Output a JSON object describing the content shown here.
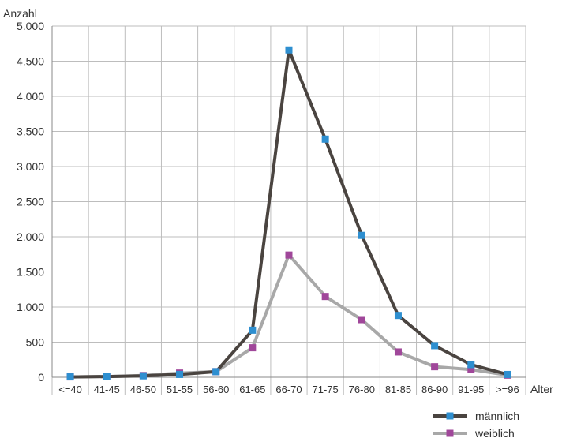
{
  "chart_data": {
    "type": "line",
    "ylabel": "Anzahl",
    "xlabel": "Alter",
    "ylim": [
      0,
      5000
    ],
    "yticks": [
      0,
      500,
      1000,
      1500,
      2000,
      2500,
      3000,
      3500,
      4000,
      4500,
      5000
    ],
    "ytick_labels": [
      "0",
      "500",
      "1.000",
      "1.500",
      "2.000",
      "2.500",
      "3.000",
      "3.500",
      "4.000",
      "4.500",
      "5.000"
    ],
    "categories": [
      "<=40",
      "41-45",
      "46-50",
      "51-55",
      "56-60",
      "61-65",
      "66-70",
      "71-75",
      "76-80",
      "81-85",
      "86-90",
      "91-95",
      ">=96"
    ],
    "grid": true,
    "legend_position": "bottom-right",
    "series": [
      {
        "name": "männlich",
        "line_color": "#4a4440",
        "marker_color": "#2e8fd0",
        "values": [
          5,
          10,
          20,
          40,
          80,
          670,
          4660,
          3390,
          2020,
          880,
          450,
          180,
          40
        ]
      },
      {
        "name": "weiblich",
        "line_color": "#a8a8a8",
        "marker_color": "#a0479a",
        "values": [
          5,
          10,
          25,
          60,
          80,
          420,
          1740,
          1150,
          820,
          360,
          150,
          110,
          30
        ]
      }
    ]
  }
}
